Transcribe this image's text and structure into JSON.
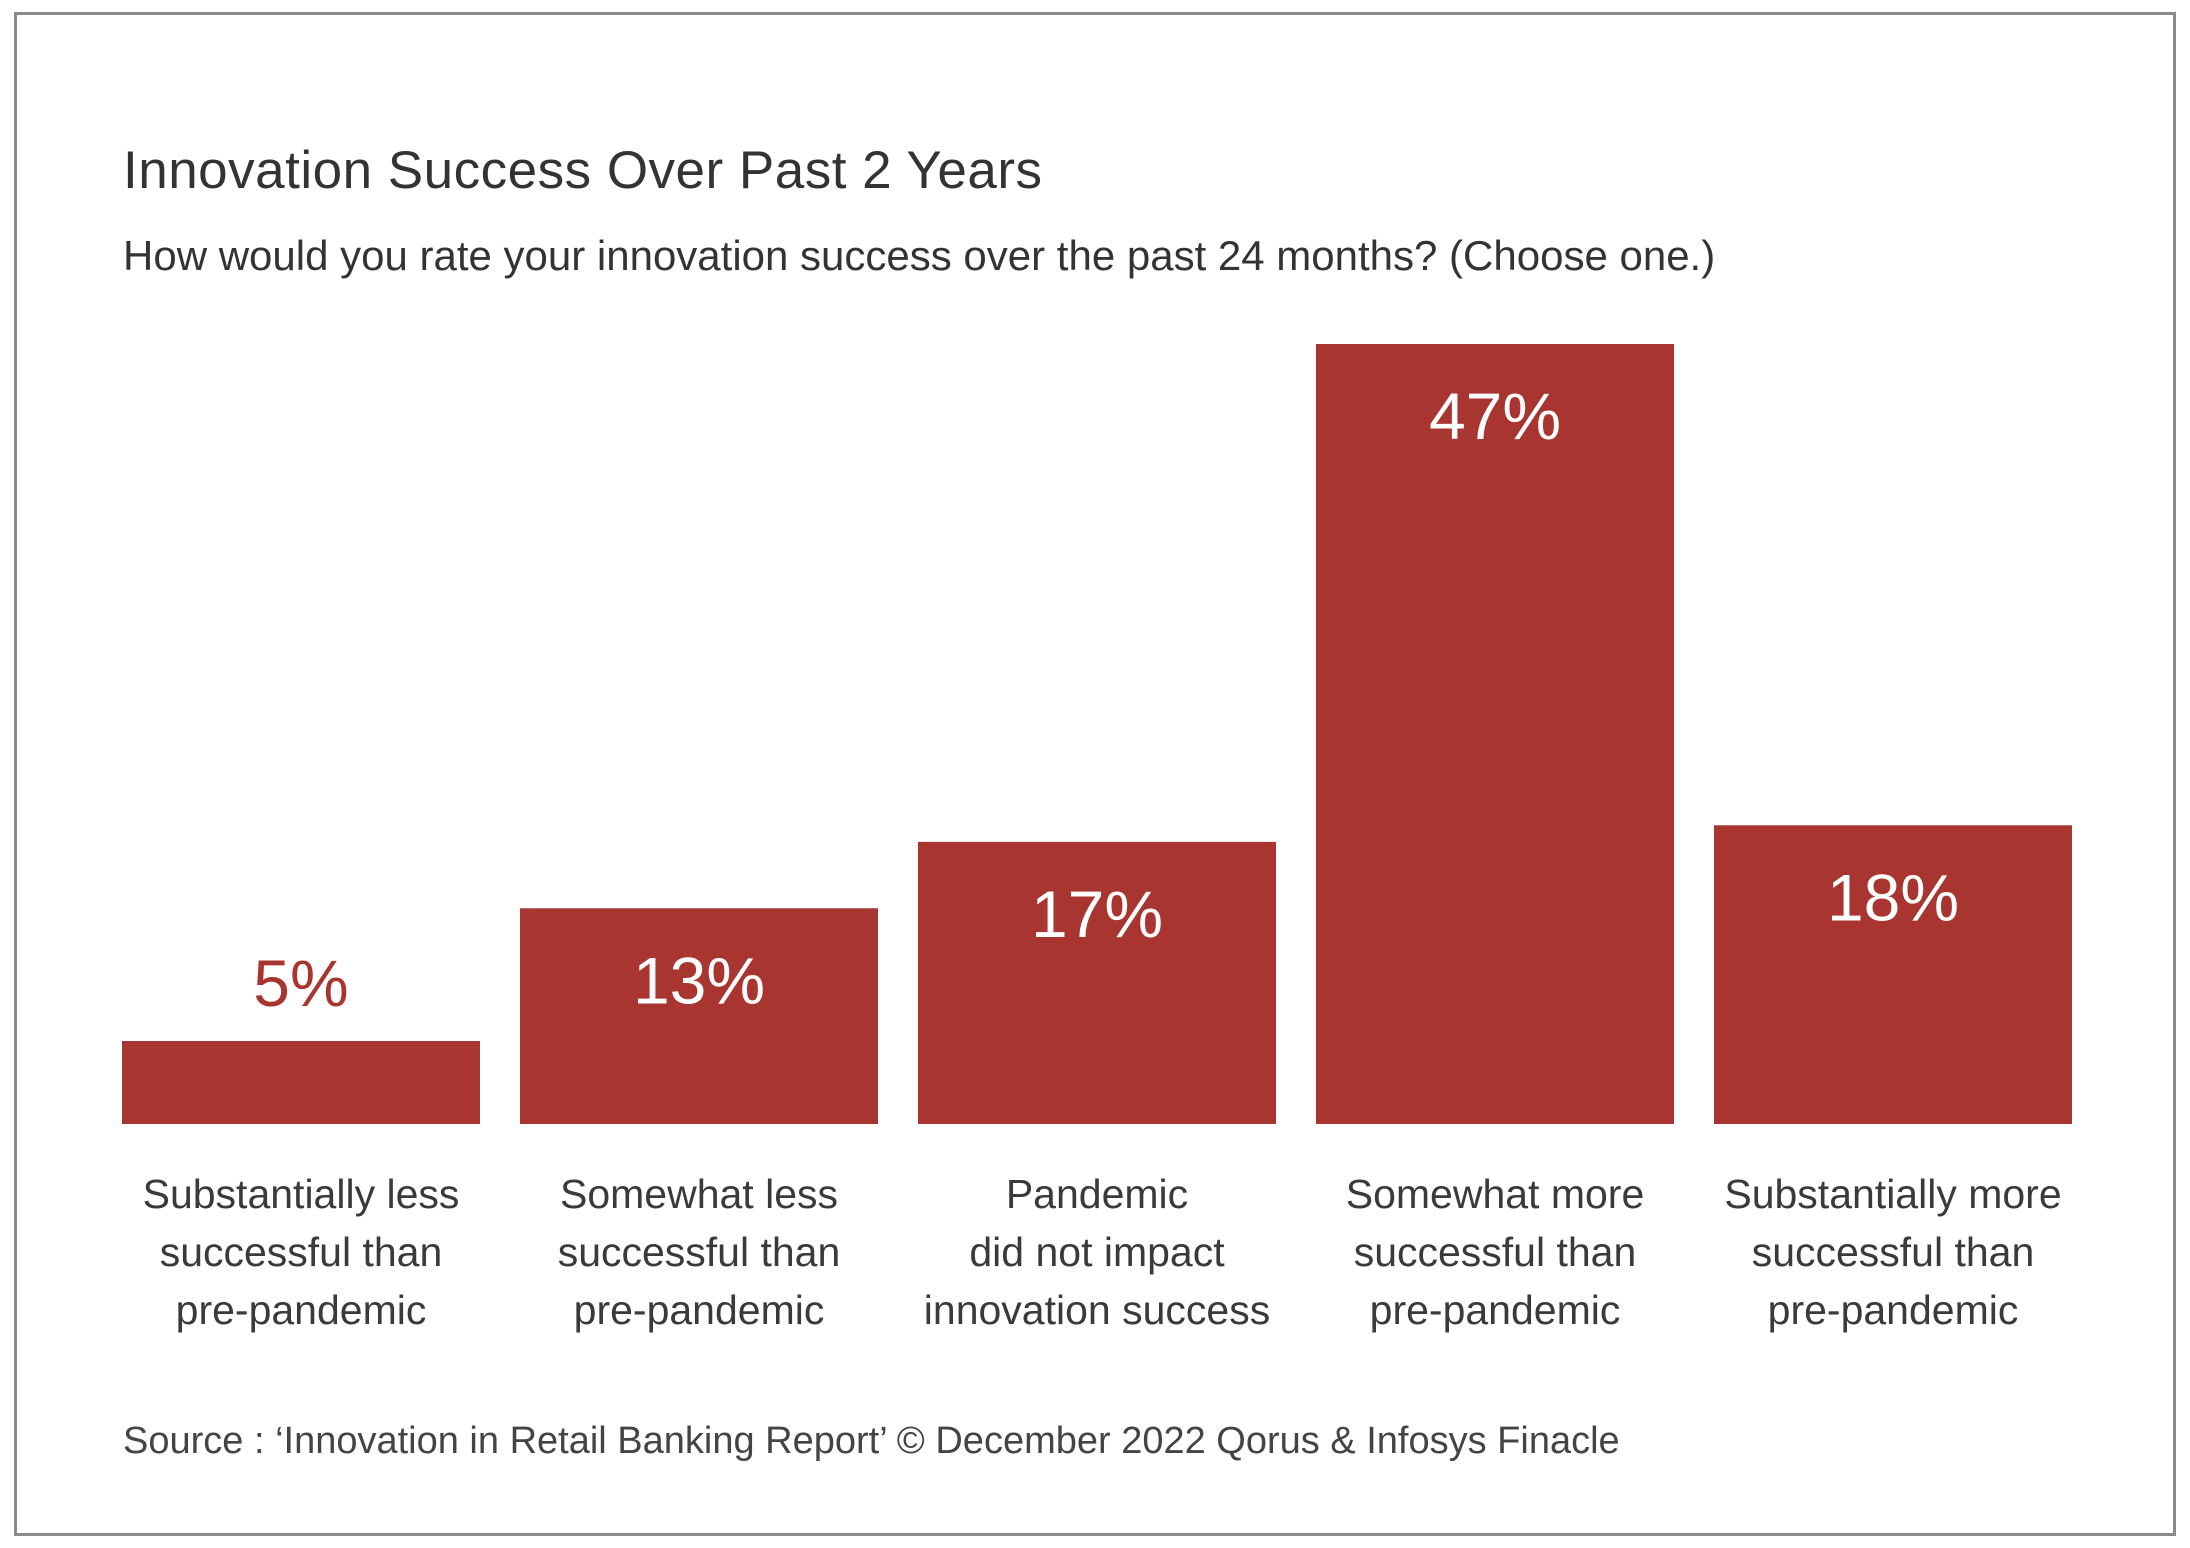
{
  "chart_data": {
    "type": "bar",
    "title": "Innovation Success Over Past 2 Years",
    "subtitle": "How would you rate your innovation success over the past 24 months? (Choose one.)",
    "categories": [
      [
        "Substantially less",
        "successful than",
        "pre-pandemic"
      ],
      [
        "Somewhat less",
        "successful than",
        "pre-pandemic"
      ],
      [
        "Pandemic",
        "did not impact",
        "innovation success"
      ],
      [
        "Somewhat more",
        "successful than",
        "pre-pandemic"
      ],
      [
        "Substantially more",
        "successful than",
        "pre-pandemic"
      ]
    ],
    "values": [
      5,
      13,
      17,
      47,
      18
    ],
    "value_labels": [
      "5%",
      "13%",
      "17%",
      "47%",
      "18%"
    ],
    "ylim": [
      0,
      47
    ],
    "grid": false,
    "legend": "none",
    "bar_color": "#a93530",
    "label_color_inside": "#ffffff",
    "label_color_outside": "#a93530",
    "source": "Source : ‘Innovation in Retail Banking Report’ © December 2022 Qorus & Infosys Finacle"
  }
}
